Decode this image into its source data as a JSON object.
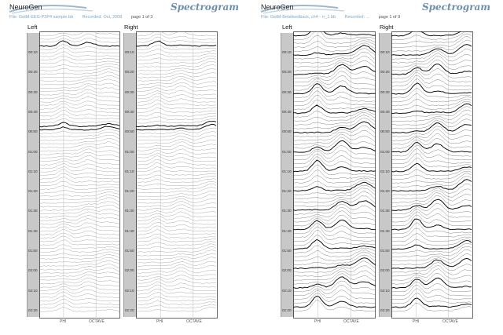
{
  "pages": [
    {
      "brand": "NeuroGen",
      "title": "Spectrogram",
      "file": "File: GetM-EEG-P3P4 sample.bb",
      "recorded": "Recorded: Oct, 2008",
      "page": "page 1 of 3",
      "channels": [
        "Left",
        "Right"
      ],
      "xlabels": [
        "PHI",
        "OCTAVE"
      ]
    },
    {
      "brand": "NeuroGen",
      "title": "Spectrogram",
      "file": "File: GetM-Betafeedback, ch4 - rr_1.bb",
      "recorded": "Recorded: ...",
      "page": "page 1 of 9",
      "channels": [
        "Left",
        "Right"
      ],
      "xlabels": [
        "PHI",
        "OCTAVE"
      ]
    }
  ],
  "time_ticks": [
    "00:10",
    "00:20",
    "00:30",
    "00:40",
    "00:50",
    "01:00",
    "01:10",
    "01:20",
    "01:30",
    "01:40",
    "01:50",
    "02:00",
    "02:10",
    "02:20"
  ],
  "colors": {
    "title": "#6f8fa8",
    "info": "#7fa7c7",
    "axis_bg": "#c8c8c8"
  }
}
